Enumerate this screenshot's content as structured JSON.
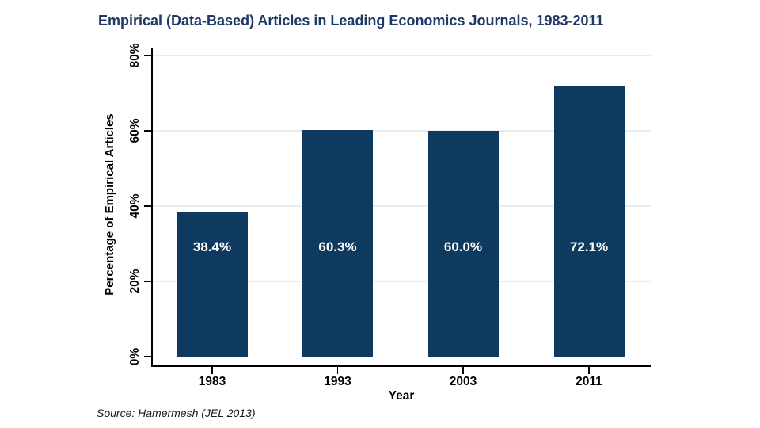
{
  "chart_data": {
    "type": "bar",
    "title": "Empirical (Data-Based) Articles in Leading Economics Journals, 1983-2011",
    "categories": [
      "1983",
      "1993",
      "2003",
      "2011"
    ],
    "values": [
      38.4,
      60.3,
      60.0,
      72.1
    ],
    "bar_labels": [
      "38.4%",
      "60.3%",
      "60.0%",
      "72.1%"
    ],
    "xlabel": "Year",
    "ylabel": "Percentage of Empirical Articles",
    "ylim": [
      0,
      80
    ],
    "y_ticks": [
      {
        "value": 0,
        "label": "0%"
      },
      {
        "value": 20,
        "label": "20%"
      },
      {
        "value": 40,
        "label": "40%"
      },
      {
        "value": 60,
        "label": "60%"
      },
      {
        "value": 80,
        "label": "80%"
      }
    ],
    "grid": true,
    "legend": "none",
    "source": "Source: Hamermesh (JEL 2013)",
    "colors": {
      "bar": "#0d3a5e",
      "title_text": "#1f3864",
      "grid": "#e7eef3",
      "axis": "#000000",
      "tick_text": "#000000",
      "bar_label_text": "#ffffff",
      "source_text": "#1a1a1a",
      "background": "#ffffff"
    }
  }
}
